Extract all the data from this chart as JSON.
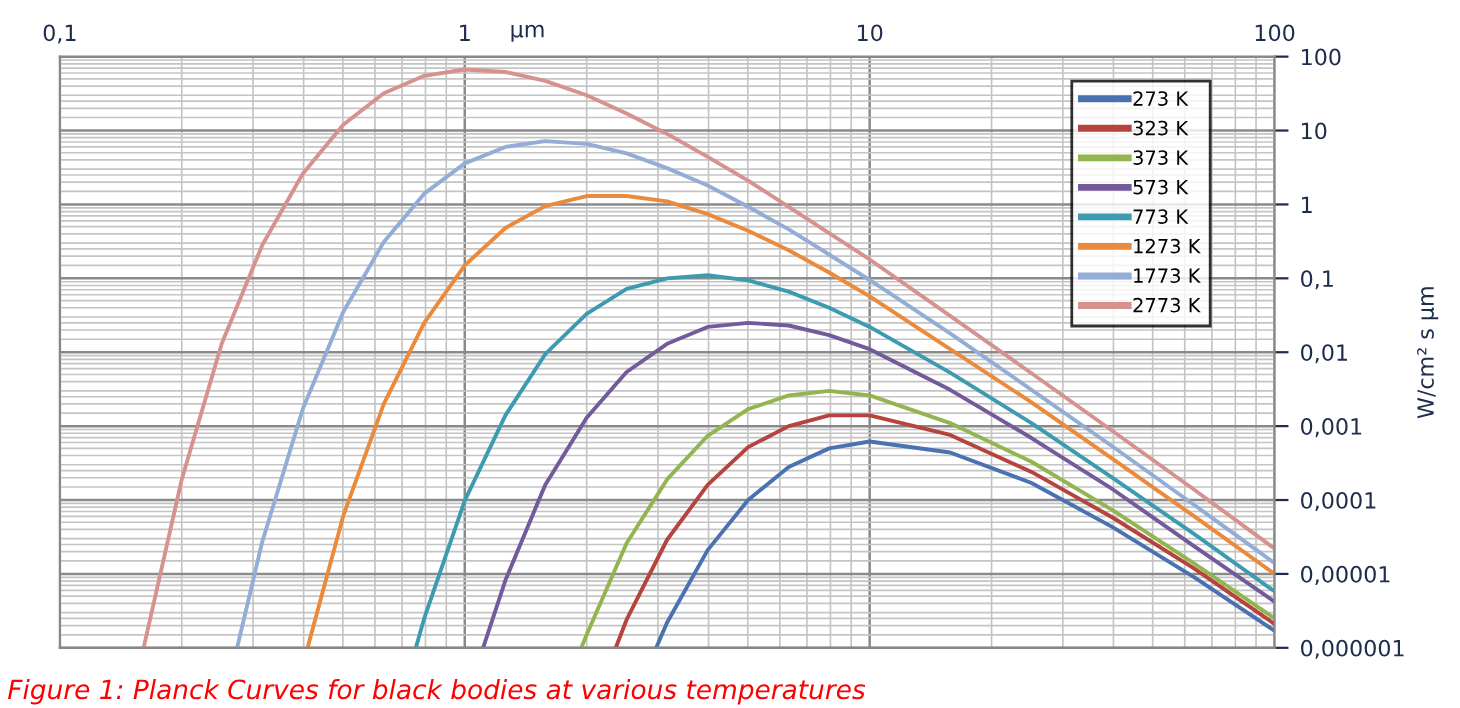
{
  "chart_data": {
    "type": "line",
    "xlabel": "µm",
    "ylabel": "W/cm² s µm",
    "log": "xy",
    "grid": true,
    "legend": "top right",
    "marker": "none",
    "line_style": "solid",
    "xlim": [
      0.1,
      100
    ],
    "ylim": [
      1e-06,
      100
    ],
    "xticks": [
      {
        "value": 0.1,
        "label": "0,1"
      },
      1,
      10,
      100
    ],
    "yticks": [
      100,
      10,
      1,
      {
        "value": 0.1,
        "label": "0,1"
      },
      {
        "value": 0.01,
        "label": "0,01"
      },
      {
        "value": 0.001,
        "label": "0,001"
      },
      {
        "value": 0.0001,
        "label": "0,0001"
      },
      {
        "value": 1e-05,
        "label": "0,00001"
      },
      {
        "value": 1e-06,
        "label": "0,000001"
      }
    ],
    "annotations": [
      "Figure 1: Planck Curves for black bodies at various temperatures"
    ],
    "series": [
      {
        "name": "273 K",
        "color": "#4a72b0",
        "x": [
          2.97,
          3.16,
          3.98,
          5.01,
          6.31,
          7.94,
          10,
          15.8,
          25.1,
          39.8,
          63.1,
          100
        ],
        "values": [
          1e-06,
          2.2e-06,
          2.1e-05,
          0.0001,
          0.00028,
          0.0005,
          0.00062,
          0.00044,
          0.00017,
          4.3e-05,
          9.1e-06,
          1.7e-06
        ]
      },
      {
        "name": "323 K",
        "color": "#b5443f",
        "x": [
          2.36,
          2.51,
          3.16,
          3.98,
          5.01,
          6.31,
          7.94,
          10,
          15.8,
          25.1,
          39.8,
          63.1,
          100
        ],
        "values": [
          1e-06,
          2.4e-06,
          2.9e-05,
          0.00016,
          0.00052,
          0.001,
          0.0014,
          0.0014,
          0.00076,
          0.00024,
          5.8e-05,
          1.2e-05,
          2.1e-06
        ]
      },
      {
        "name": "373 K",
        "color": "#93b54f",
        "x": [
          1.94,
          2,
          2.51,
          3.16,
          3.98,
          5.01,
          6.31,
          7.94,
          10,
          15.8,
          25.1,
          39.8,
          63.1,
          100
        ],
        "values": [
          1e-06,
          1.5e-06,
          2.6e-05,
          0.00019,
          0.00074,
          0.0017,
          0.0026,
          0.003,
          0.0026,
          0.0011,
          0.00033,
          7.3e-05,
          1.4e-05,
          2.5e-06
        ]
      },
      {
        "name": "573 K",
        "color": "#735a9a",
        "x": [
          1.11,
          1.26,
          1.58,
          2,
          2.51,
          3.16,
          3.98,
          5.01,
          6.31,
          7.94,
          10,
          15.8,
          25.1,
          39.8,
          63.1,
          100
        ],
        "values": [
          1e-06,
          8.2e-06,
          0.00016,
          0.0013,
          0.0054,
          0.013,
          0.022,
          0.025,
          0.023,
          0.017,
          0.011,
          0.0031,
          0.00069,
          0.00014,
          2.4e-05,
          4.2e-06
        ]
      },
      {
        "name": "773 K",
        "color": "#3d9bb0",
        "x": [
          0.757,
          0.794,
          1,
          1.26,
          1.58,
          2,
          2.51,
          3.16,
          3.98,
          5.01,
          6.31,
          7.94,
          10,
          15.8,
          25.1,
          39.8,
          63.1,
          100
        ],
        "values": [
          1e-06,
          2.5e-06,
          9.8e-05,
          0.0014,
          0.0094,
          0.033,
          0.072,
          0.1,
          0.11,
          0.094,
          0.066,
          0.04,
          0.022,
          0.0053,
          0.0011,
          0.0002,
          3.5e-05,
          5.8e-06
        ]
      },
      {
        "name": "1273 K",
        "color": "#ec8a3c",
        "x": [
          0.409,
          0.501,
          0.631,
          0.794,
          1,
          1.26,
          1.58,
          2,
          2.51,
          3.16,
          3.98,
          5.01,
          6.31,
          7.94,
          10,
          15.8,
          25.1,
          39.8,
          63.1,
          100
        ],
        "values": [
          1e-06,
          6.1e-05,
          0.002,
          0.025,
          0.15,
          0.48,
          0.95,
          1.3,
          1.3,
          1.1,
          0.74,
          0.44,
          0.24,
          0.12,
          0.057,
          0.011,
          0.0021,
          0.00036,
          6.1e-05,
          1e-05
        ]
      },
      {
        "name": "1773 K",
        "color": "#93aed6",
        "x": [
          0.274,
          0.316,
          0.398,
          0.501,
          0.631,
          0.794,
          1,
          1.26,
          1.58,
          2,
          2.51,
          3.16,
          3.98,
          5.01,
          6.31,
          7.94,
          10,
          15.8,
          25.1,
          39.8,
          63.1,
          100
        ],
        "values": [
          1e-06,
          2.7e-05,
          0.0017,
          0.035,
          0.31,
          1.4,
          3.6,
          6,
          7.2,
          6.6,
          4.9,
          3.1,
          1.8,
          0.93,
          0.46,
          0.21,
          0.095,
          0.018,
          0.0031,
          0.00053,
          8.7e-05,
          1.4e-05
        ]
      },
      {
        "name": "2773 K",
        "color": "#d6928f",
        "x": [
          0.161,
          0.2,
          0.251,
          0.316,
          0.398,
          0.501,
          0.631,
          0.794,
          1,
          1.26,
          1.58,
          2,
          2.51,
          3.16,
          3.98,
          5.01,
          6.31,
          7.94,
          10,
          15.8,
          25.1,
          39.8,
          63.1,
          100
        ],
        "values": [
          1e-06,
          0.00019,
          0.013,
          0.28,
          2.6,
          12,
          32,
          55,
          67,
          62,
          47,
          30,
          17,
          9,
          4.4,
          2.1,
          0.93,
          0.41,
          0.18,
          0.031,
          0.0052,
          0.00086,
          0.00014,
          2.2e-05
        ]
      }
    ]
  }
}
